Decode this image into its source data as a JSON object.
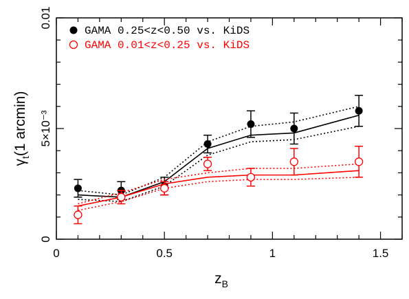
{
  "chart_data": {
    "type": "scatter",
    "xlabel": "z",
    "xlabel_sub": "B",
    "ylabel": "γ",
    "ylabel_sub": "t",
    "ylabel_rest": "(1 arcmin)",
    "xlim": [
      0,
      1.6
    ],
    "ylim": [
      0,
      0.01
    ],
    "x_ticks": [
      0,
      0.5,
      1,
      1.5
    ],
    "x_tick_labels": [
      "0",
      "0.5",
      "1",
      "1.5"
    ],
    "y_tick_labels": [
      {
        "value": 0,
        "text": "0"
      },
      {
        "value": 0.005,
        "text": "5×10⁻³"
      },
      {
        "value": 0.01,
        "text": "0.01"
      }
    ],
    "grid": false,
    "legend_position": "top-left",
    "series": [
      {
        "name": "GAMA 0.25<z<0.50 vs. KiDS",
        "color": "#000000",
        "marker": "filled-circle",
        "x": [
          0.1,
          0.3,
          0.5,
          0.7,
          0.9,
          1.1,
          1.4
        ],
        "y": [
          0.0023,
          0.0022,
          0.0024,
          0.0043,
          0.0052,
          0.005,
          0.0058
        ],
        "yerr": [
          0.0004,
          0.0004,
          0.0004,
          0.0004,
          0.0006,
          0.0007,
          0.0007
        ],
        "model_x": [
          0.1,
          0.3,
          0.5,
          0.7,
          0.9,
          1.1,
          1.4
        ],
        "model_y": [
          0.002,
          0.0019,
          0.0026,
          0.0041,
          0.0047,
          0.0048,
          0.0056
        ],
        "model_upper": [
          0.0022,
          0.002,
          0.0028,
          0.0044,
          0.0051,
          0.0053,
          0.006
        ],
        "model_lower": [
          0.0018,
          0.0017,
          0.0024,
          0.0038,
          0.0044,
          0.0045,
          0.0051
        ]
      },
      {
        "name": "GAMA 0.01<z<0.25 vs. KiDS",
        "color": "#ff0000",
        "marker": "open-circle",
        "x": [
          0.1,
          0.3,
          0.5,
          0.7,
          0.9,
          1.1,
          1.4
        ],
        "y": [
          0.0011,
          0.0019,
          0.0023,
          0.0034,
          0.0028,
          0.0035,
          0.0035
        ],
        "yerr": [
          0.0004,
          0.0003,
          0.0003,
          0.0003,
          0.0004,
          0.0006,
          0.0007
        ],
        "model_x": [
          0.1,
          0.3,
          0.5,
          0.7,
          0.9,
          1.1,
          1.4
        ],
        "model_y": [
          0.0015,
          0.0019,
          0.0025,
          0.0028,
          0.0029,
          0.0029,
          0.0031
        ],
        "model_upper": [
          0.0016,
          0.0021,
          0.0027,
          0.003,
          0.0032,
          0.0032,
          0.0034
        ],
        "model_lower": [
          0.0013,
          0.0017,
          0.0023,
          0.0026,
          0.0027,
          0.0027,
          0.0028
        ]
      }
    ]
  }
}
